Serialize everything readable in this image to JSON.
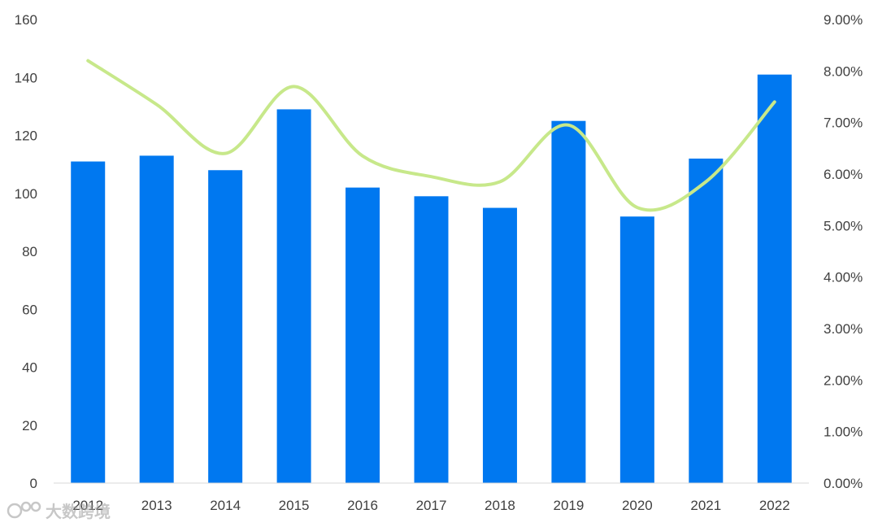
{
  "chart_data": {
    "type": "bar",
    "categories": [
      "2012",
      "2013",
      "2014",
      "2015",
      "2016",
      "2017",
      "2018",
      "2019",
      "2020",
      "2021",
      "2022"
    ],
    "series": [
      {
        "type": "bar",
        "axis": "left",
        "color": "#0078f0",
        "values": [
          111,
          113,
          108,
          129,
          102,
          99,
          95,
          125,
          92,
          112,
          141
        ]
      },
      {
        "type": "line",
        "axis": "right",
        "color": "#c7e88a",
        "smooth": true,
        "values": [
          8.2,
          7.35,
          6.4,
          7.7,
          6.35,
          5.95,
          5.85,
          6.95,
          5.35,
          5.85,
          7.4
        ]
      }
    ],
    "ylim": [
      0,
      160
    ],
    "y_ticks": [
      "0",
      "20",
      "40",
      "60",
      "80",
      "100",
      "120",
      "140",
      "160"
    ],
    "y2lim": [
      0,
      9
    ],
    "y2_ticks": [
      "0.00%",
      "1.00%",
      "2.00%",
      "3.00%",
      "4.00%",
      "5.00%",
      "6.00%",
      "7.00%",
      "8.00%",
      "9.00%"
    ],
    "grid": false,
    "legend": "none"
  },
  "watermark": {
    "text": "大数跨境"
  }
}
